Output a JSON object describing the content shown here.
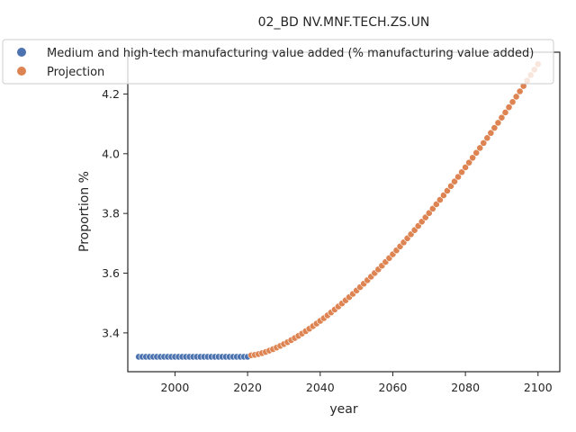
{
  "chart_data": {
    "type": "scatter",
    "title": "02_BD NV.MNF.TECH.ZS.UN",
    "xlabel": "year",
    "ylabel": "Proportion %",
    "xlim": [
      1987,
      2106
    ],
    "ylim": [
      3.27,
      4.34
    ],
    "xticks": [
      2000,
      2020,
      2040,
      2060,
      2080,
      2100
    ],
    "yticks": [
      3.4,
      3.6,
      3.8,
      4.0,
      4.2
    ],
    "grid": false,
    "legend_position": "top-right",
    "series": [
      {
        "name": "Medium and high-tech manufacturing value added (% manufacturing value added)",
        "color": "#4c72b0",
        "x_start": 1990,
        "x_end": 2020,
        "y_value": 3.32
      },
      {
        "name": "Projection",
        "color": "#dd8452",
        "x_start": 2021,
        "x_end": 2100,
        "y_start": 3.325,
        "y_end": 4.3,
        "curve_exponent": 1.5
      }
    ]
  }
}
